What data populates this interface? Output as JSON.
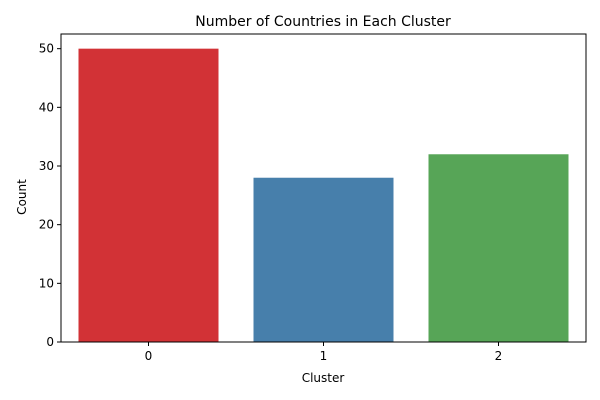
{
  "chart_data": {
    "type": "bar",
    "title": "Number of Countries in Each Cluster",
    "xlabel": "Cluster",
    "ylabel": "Count",
    "categories": [
      "0",
      "1",
      "2"
    ],
    "values": [
      50,
      28,
      32
    ],
    "colors": [
      "#d23236",
      "#477fab",
      "#57a557"
    ],
    "ylim": [
      0,
      52.5
    ],
    "yticks": [
      0,
      10,
      20,
      30,
      40,
      50
    ],
    "grid": false,
    "legend": "none"
  }
}
